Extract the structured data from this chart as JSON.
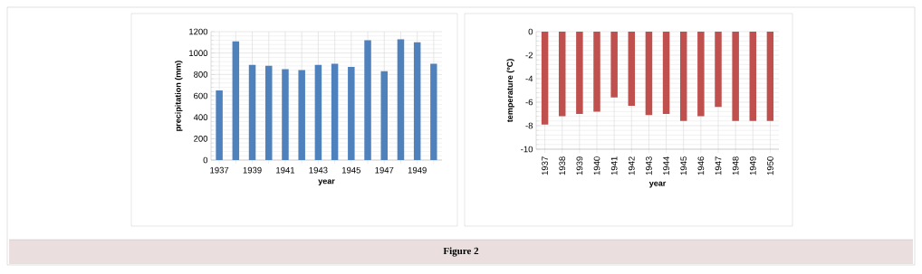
{
  "chart_data": [
    {
      "type": "bar",
      "xlabel": "year",
      "ylabel": "precipitation (mm)",
      "categories": [
        "1937",
        null,
        "1939",
        null,
        "1941",
        null,
        "1943",
        null,
        "1945",
        null,
        "1947",
        null,
        "1949",
        null
      ],
      "values": [
        650,
        1110,
        890,
        880,
        850,
        840,
        890,
        900,
        870,
        1120,
        830,
        1130,
        1100,
        900
      ],
      "color": "#4f81bd",
      "ylim": [
        0,
        1200
      ],
      "yticks": [
        0,
        200,
        400,
        600,
        800,
        1000,
        1200
      ],
      "grid": true,
      "annotations": [
        "Figure 2"
      ]
    },
    {
      "type": "bar",
      "xlabel": "year",
      "ylabel": "temperature (ºC)",
      "categories": [
        "1937",
        "1938",
        "1939",
        "1940",
        "1941",
        "1942",
        "1943",
        "1944",
        "1945",
        "1946",
        "1947",
        "1948",
        "1949",
        "1950"
      ],
      "values": [
        -7.9,
        -7.2,
        -7.0,
        -6.8,
        -5.6,
        -6.3,
        -7.1,
        -7.0,
        -7.6,
        -7.2,
        -6.4,
        -7.6,
        -7.6,
        -7.6
      ],
      "color": "#c0504d",
      "ylim": [
        -10,
        0
      ],
      "yticks": [
        -10,
        -8,
        -6,
        -4,
        -2,
        0
      ],
      "grid": true
    }
  ]
}
